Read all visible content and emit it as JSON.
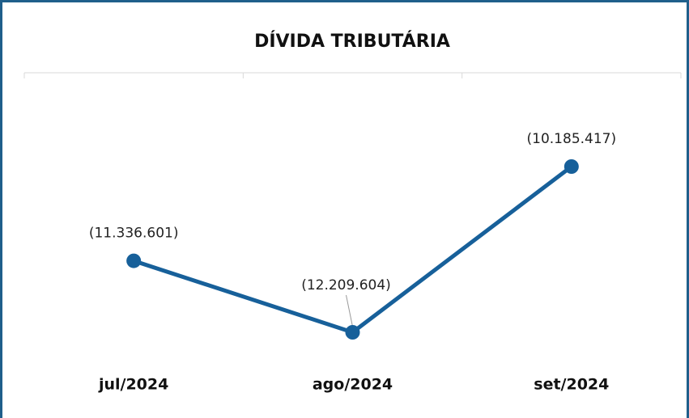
{
  "chart_data": {
    "type": "line",
    "title": "DÍVIDA TRIBUTÁRIA",
    "categories": [
      "jul/2024",
      "ago/2024",
      "set/2024"
    ],
    "series": [
      {
        "color": "#17609a",
        "values": [
          -11336601,
          -12209604,
          -10185417
        ],
        "value_labels": [
          "(11.336.601)",
          "(12.209.604)",
          "(10.185.417)"
        ]
      }
    ]
  }
}
